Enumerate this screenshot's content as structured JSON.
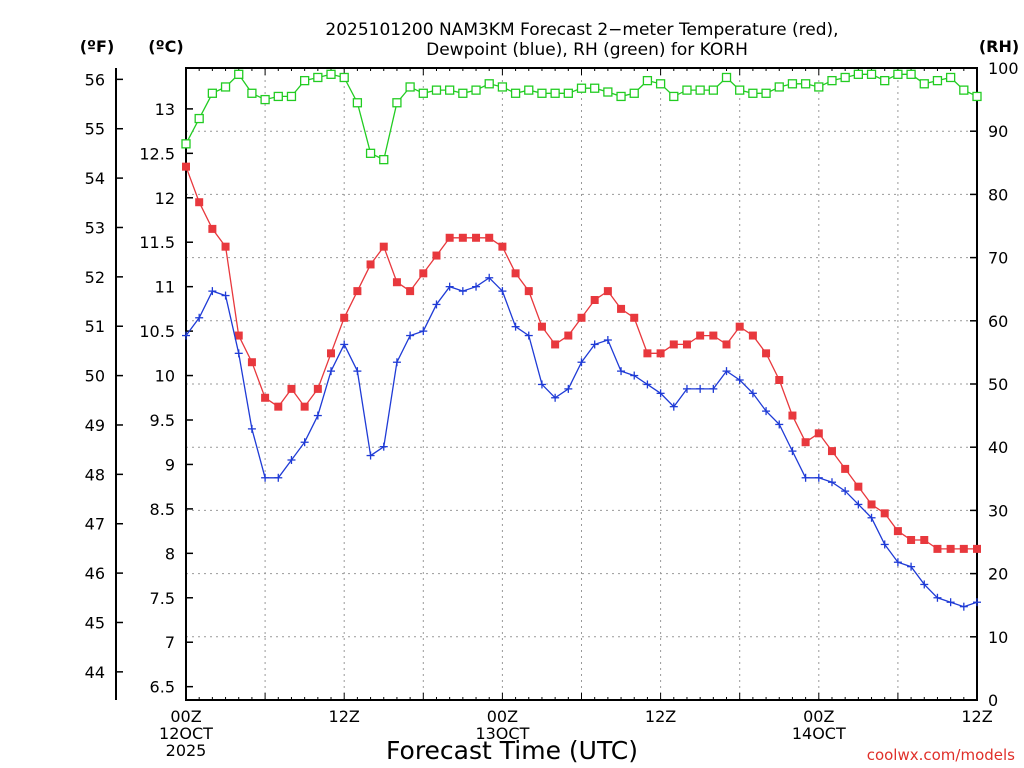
{
  "header": {
    "title_line1": "2025101200 NAM3KM Forecast 2−meter Temperature (red),",
    "title_line2": "Dewpoint (blue), RH (green) for KORH"
  },
  "colors": {
    "temperature": "#e8383d",
    "dewpoint": "#1f3bd6",
    "rh": "#22cc22",
    "grid": "#999999",
    "credit": "#e0302a"
  },
  "footer": {
    "credit": "coolwx.com/models"
  },
  "chart_data": {
    "type": "line",
    "title": "2025101200 NAM3KM Forecast 2-meter Temperature (red), Dewpoint (blue), RH (green) for KORH",
    "xlabel": "Forecast Time (UTC)",
    "x_hours": [
      0,
      1,
      2,
      3,
      4,
      5,
      6,
      7,
      8,
      9,
      10,
      11,
      12,
      13,
      14,
      15,
      16,
      17,
      18,
      19,
      20,
      21,
      22,
      23,
      24,
      25,
      26,
      27,
      28,
      29,
      30,
      31,
      32,
      33,
      34,
      35,
      36,
      37,
      38,
      39,
      40,
      41,
      42,
      43,
      44,
      45,
      46,
      47,
      48,
      49,
      50,
      51,
      52,
      53,
      54,
      55,
      56,
      57,
      58,
      59,
      60
    ],
    "xlim": [
      0,
      60
    ],
    "x_ticks": [
      {
        "hour": 0,
        "lines": [
          "00Z",
          "12OCT",
          "2025"
        ]
      },
      {
        "hour": 12,
        "lines": [
          "12Z"
        ]
      },
      {
        "hour": 24,
        "lines": [
          "00Z",
          "13OCT"
        ]
      },
      {
        "hour": 36,
        "lines": [
          "12Z"
        ]
      },
      {
        "hour": 48,
        "lines": [
          "00Z",
          "14OCT"
        ]
      },
      {
        "hour": 60,
        "lines": [
          "12Z"
        ]
      }
    ],
    "axes": {
      "left_f": {
        "label": "(ºF)",
        "ylim": [
          43.43,
          56.23
        ],
        "ticks": [
          44,
          45,
          46,
          47,
          48,
          49,
          50,
          51,
          52,
          53,
          54,
          55,
          56
        ]
      },
      "left_c": {
        "label": "(ºC)",
        "ylim": [
          6.35,
          13.46
        ],
        "ticks": [
          "6.5",
          "7",
          "7.5",
          "8",
          "8.5",
          "9",
          "9.5",
          "10",
          "10.5",
          "11",
          "11.5",
          "12",
          "12.5",
          "13"
        ]
      },
      "right_rh": {
        "label": "(RH)",
        "ylim": [
          0,
          100
        ],
        "ticks": [
          0,
          10,
          20,
          30,
          40,
          50,
          60,
          70,
          80,
          90,
          100
        ]
      }
    },
    "grid": true,
    "series": [
      {
        "name": "Temperature",
        "units": "C",
        "color": "#e8383d",
        "marker": "filled-square",
        "values": [
          12.35,
          11.95,
          11.65,
          11.45,
          10.45,
          10.15,
          9.75,
          9.65,
          9.85,
          9.65,
          9.85,
          10.25,
          10.65,
          10.95,
          11.25,
          11.45,
          11.05,
          10.95,
          11.15,
          11.35,
          11.55,
          11.55,
          11.55,
          11.55,
          11.45,
          11.15,
          10.95,
          10.55,
          10.35,
          10.45,
          10.65,
          10.85,
          10.95,
          10.75,
          10.65,
          10.25,
          10.25,
          10.35,
          10.35,
          10.45,
          10.45,
          10.35,
          10.55,
          10.45,
          10.25,
          9.95,
          9.55,
          9.25,
          9.35,
          9.15,
          8.95,
          8.75,
          8.55,
          8.45,
          8.25,
          8.15,
          8.15,
          8.05,
          8.05,
          8.05,
          8.05
        ]
      },
      {
        "name": "Dewpoint",
        "units": "C",
        "color": "#1f3bd6",
        "marker": "plus",
        "values": [
          10.45,
          10.65,
          10.95,
          10.9,
          10.25,
          9.4,
          8.85,
          8.85,
          9.05,
          9.25,
          9.55,
          10.05,
          10.35,
          10.05,
          9.1,
          9.2,
          10.15,
          10.45,
          10.5,
          10.8,
          11.0,
          10.95,
          11.0,
          11.1,
          10.95,
          10.55,
          10.45,
          9.9,
          9.75,
          9.85,
          10.15,
          10.35,
          10.4,
          10.05,
          10.0,
          9.9,
          9.8,
          9.65,
          9.85,
          9.85,
          9.85,
          10.05,
          9.95,
          9.8,
          9.6,
          9.45,
          9.15,
          8.85,
          8.85,
          8.8,
          8.7,
          8.55,
          8.4,
          8.1,
          7.9,
          7.85,
          7.65,
          7.5,
          7.45,
          7.4,
          7.45
        ]
      },
      {
        "name": "RH",
        "units": "%",
        "color": "#22cc22",
        "marker": "open-square",
        "values": [
          88,
          92,
          96,
          97,
          99,
          96,
          95,
          95.5,
          95.5,
          98,
          98.5,
          99,
          98.5,
          94.5,
          86.5,
          85.5,
          94.5,
          97,
          96,
          96.5,
          96.5,
          96,
          96.5,
          97.5,
          97,
          96,
          96.5,
          96,
          96,
          96,
          96.8,
          96.8,
          96.2,
          95.5,
          96,
          98,
          97.5,
          95.5,
          96.5,
          96.5,
          96.5,
          98.5,
          96.5,
          96,
          96,
          97,
          97.5,
          97.5,
          97,
          98,
          98.5,
          99,
          99,
          98,
          99,
          99,
          97.5,
          98,
          98.5,
          96.5,
          95.5
        ]
      }
    ]
  }
}
